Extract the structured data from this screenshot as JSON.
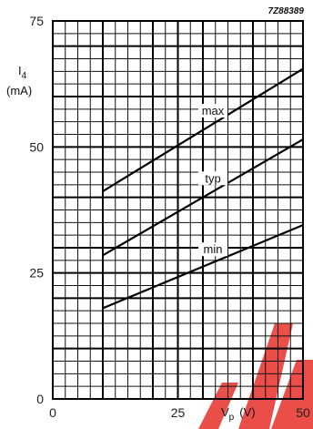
{
  "chart_data": {
    "type": "line",
    "figure_code": "7Z88389",
    "xlabel": "V",
    "xlabel_subscript": "p",
    "xlabel_unit": "(V)",
    "ylabel": "I",
    "ylabel_subscript": "4",
    "ylabel_unit": "(mA)",
    "xlim": [
      0,
      50
    ],
    "ylim": [
      0,
      75
    ],
    "xticks": [
      0,
      25,
      50
    ],
    "yticks": [
      0,
      25,
      50,
      75
    ],
    "grid": true,
    "series": [
      {
        "name": "max",
        "x": [
          10,
          50
        ],
        "y": [
          41.2,
          65.5
        ]
      },
      {
        "name": "typ",
        "x": [
          10,
          50
        ],
        "y": [
          28.5,
          51.5
        ]
      },
      {
        "name": "min",
        "x": [
          10,
          50
        ],
        "y": [
          18,
          34.5
        ]
      }
    ]
  },
  "watermark_color": "#e8302a"
}
